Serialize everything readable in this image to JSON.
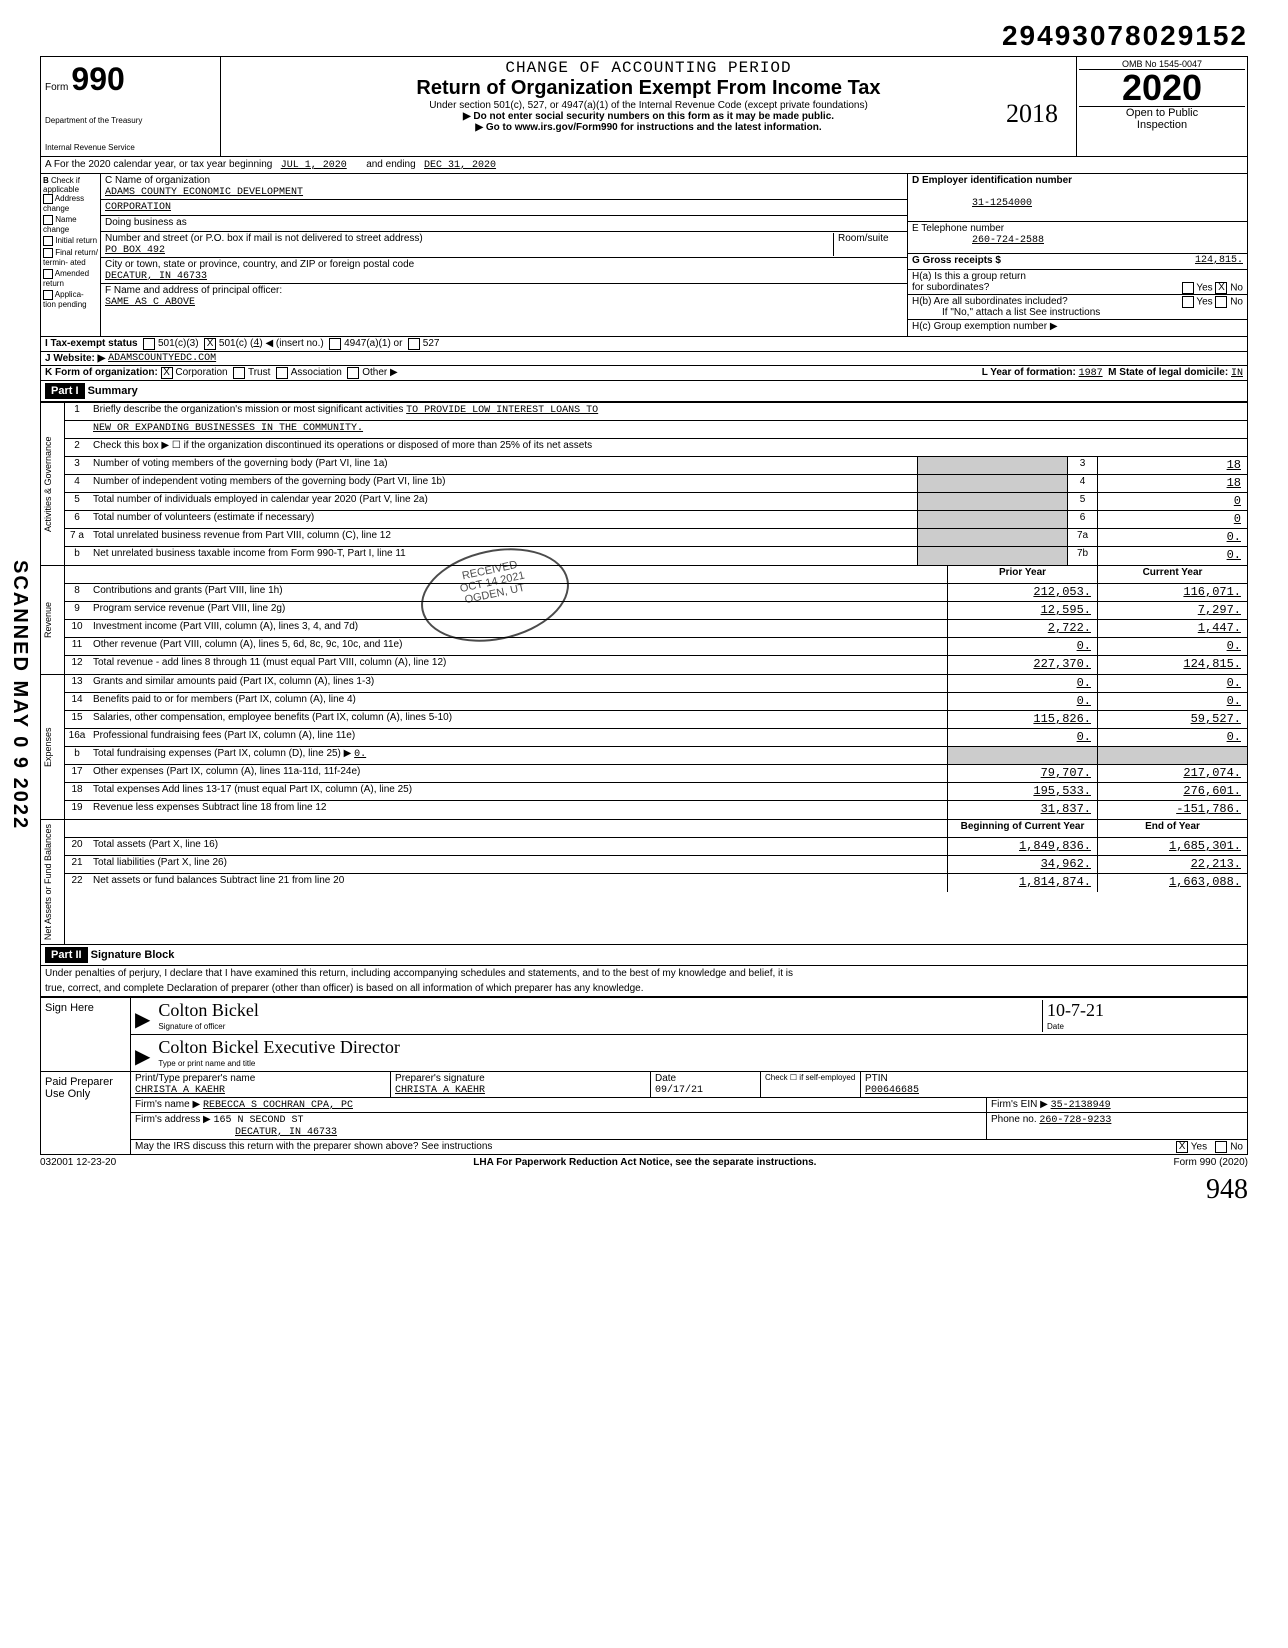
{
  "dln": "29493078029152",
  "header": {
    "form_label": "Form",
    "form_number": "990",
    "dept1": "Department of the Treasury",
    "dept2": "Internal Revenue Service",
    "accounting": "CHANGE OF ACCOUNTING PERIOD",
    "title": "Return of Organization Exempt From Income Tax",
    "subtitle": "Under section 501(c), 527, or 4947(a)(1) of the Internal Revenue Code (except private foundations)",
    "warn": "▶ Do not enter social security numbers on this form as it may be made public.",
    "goto": "▶ Go to www.irs.gov/Form990 for instructions and the latest information.",
    "omb": "OMB No  1545-0047",
    "year": "2020",
    "open1": "Open to Public",
    "open2": "Inspection",
    "stamp": "2018"
  },
  "row_a": {
    "prefix": "A  For the 2020 calendar year, or tax year beginning",
    "begin": "JUL  1,  2020",
    "mid": "and ending",
    "end": "DEC  31,  2020"
  },
  "col_b": {
    "title": "B",
    "sub": "Check if applicable",
    "items": [
      "Address change",
      "Name change",
      "Initial return",
      "Final return/ termin- ated",
      "Amended return",
      "Applica- tion pending"
    ]
  },
  "col_c": {
    "c_label": "C Name of organization",
    "name1": "ADAMS COUNTY ECONOMIC DEVELOPMENT",
    "name2": "CORPORATION",
    "dba_label": "Doing business as",
    "addr_label": "Number and street (or P.O. box if mail is not delivered to street address)",
    "room_label": "Room/suite",
    "addr": "PO BOX 492",
    "city_label": "City or town, state or province, country, and ZIP or foreign postal code",
    "city": "DECATUR, IN   46733",
    "f_label": "F Name and address of principal officer:",
    "f_val": "SAME AS C ABOVE"
  },
  "col_d": {
    "d_label": "D  Employer identification number",
    "ein": "31-1254000",
    "e_label": "E  Telephone number",
    "phone": "260-724-2588",
    "g_label": "G  Gross receipts $",
    "g_val": "124,815.",
    "h_a": "H(a) Is this a group return",
    "h_a2": "       for subordinates?",
    "h_b": "H(b) Are all subordinates included?",
    "h_note": "If \"No,\" attach a list  See instructions",
    "h_c": "H(c) Group exemption number ▶",
    "yes": "Yes",
    "no": "No",
    "x": "X"
  },
  "row_i": {
    "label": "I   Tax-exempt status",
    "opts": [
      "501(c)(3)",
      "501(c) (",
      "4",
      ") ◀  (insert no.)",
      "4947(a)(1) or",
      "527"
    ],
    "x": "X"
  },
  "row_j": {
    "label": "J  Website: ▶",
    "val": "ADAMSCOUNTYEDC.COM"
  },
  "row_k": {
    "label": "K  Form of organization:",
    "corp": "Corporation",
    "trust": "Trust",
    "assoc": "Association",
    "other": "Other ▶",
    "l_label": "L Year of formation:",
    "l_val": "1987",
    "m_label": "M State of legal domicile:",
    "m_val": "IN",
    "x": "X"
  },
  "part1": {
    "hdr": "Part I",
    "title": "Summary",
    "sections": [
      {
        "side": "Activities & Governance",
        "rows": [
          {
            "n": "1",
            "d": "Briefly describe the organization's mission or most significant activities  ",
            "val_inline": "TO PROVIDE LOW INTEREST LOANS TO",
            "type": "text"
          },
          {
            "n": "",
            "d": "",
            "val_inline": "NEW OR EXPANDING BUSINESSES IN THE COMMUNITY.",
            "type": "text"
          },
          {
            "n": "2",
            "d": "Check this box ▶ ☐ if the organization discontinued its operations or disposed of more than 25% of its net assets",
            "type": "blank"
          },
          {
            "n": "3",
            "d": "Number of voting members of the governing body (Part VI, line 1a)",
            "box": "3",
            "v2": "18",
            "type": "single"
          },
          {
            "n": "4",
            "d": "Number of independent voting members of the governing body (Part VI, line 1b)",
            "box": "4",
            "v2": "18",
            "type": "single"
          },
          {
            "n": "5",
            "d": "Total number of individuals employed in calendar year 2020 (Part V, line 2a)",
            "box": "5",
            "v2": "0",
            "type": "single"
          },
          {
            "n": "6",
            "d": "Total number of volunteers (estimate if necessary)",
            "box": "6",
            "v2": "0",
            "type": "single"
          },
          {
            "n": "7 a",
            "d": "Total unrelated business revenue from Part VIII, column (C), line 12",
            "box": "7a",
            "v2": "0.",
            "type": "single"
          },
          {
            "n": "b",
            "d": "Net unrelated business taxable income from Form 990-T, Part I, line 11",
            "box": "7b",
            "v2": "0.",
            "type": "single"
          }
        ]
      },
      {
        "side": "Revenue",
        "header": {
          "c1": "Prior Year",
          "c2": "Current Year"
        },
        "rows": [
          {
            "n": "8",
            "d": "Contributions and grants (Part VIII, line 1h)",
            "v1": "212,053.",
            "v2": "116,071."
          },
          {
            "n": "9",
            "d": "Program service revenue (Part VIII, line 2g)",
            "v1": "12,595.",
            "v2": "7,297."
          },
          {
            "n": "10",
            "d": "Investment income (Part VIII, column (A), lines 3, 4, and 7d)",
            "v1": "2,722.",
            "v2": "1,447."
          },
          {
            "n": "11",
            "d": "Other revenue (Part VIII, column (A), lines 5, 6d, 8c, 9c, 10c, and 11e)",
            "v1": "0.",
            "v2": "0."
          },
          {
            "n": "12",
            "d": "Total revenue - add lines 8 through 11 (must equal Part VIII, column (A), line 12)",
            "v1": "227,370.",
            "v2": "124,815."
          }
        ]
      },
      {
        "side": "Expenses",
        "rows": [
          {
            "n": "13",
            "d": "Grants and similar amounts paid (Part IX, column (A), lines 1-3)",
            "v1": "0.",
            "v2": "0."
          },
          {
            "n": "14",
            "d": "Benefits paid to or for members (Part IX, column (A), line 4)",
            "v1": "0.",
            "v2": "0."
          },
          {
            "n": "15",
            "d": "Salaries, other compensation, employee benefits (Part IX, column (A), lines 5-10)",
            "v1": "115,826.",
            "v2": "59,527."
          },
          {
            "n": "16a",
            "d": "Professional fundraising fees (Part IX, column (A), line 11e)",
            "v1": "0.",
            "v2": "0."
          },
          {
            "n": "b",
            "d": "Total fundraising expenses (Part IX, column (D), line 25)    ▶",
            "inline": "0.",
            "type": "inline"
          },
          {
            "n": "17",
            "d": "Other expenses (Part IX, column (A), lines 11a-11d, 11f-24e)",
            "v1": "79,707.",
            "v2": "217,074."
          },
          {
            "n": "18",
            "d": "Total expenses  Add lines 13-17 (must equal Part IX, column (A), line 25)",
            "v1": "195,533.",
            "v2": "276,601."
          },
          {
            "n": "19",
            "d": "Revenue less expenses  Subtract line 18 from line 12",
            "v1": "31,837.",
            "v2": "-151,786."
          }
        ]
      },
      {
        "side": "Net Assets or Fund Balances",
        "header": {
          "c1": "Beginning of Current Year",
          "c2": "End of Year"
        },
        "rows": [
          {
            "n": "20",
            "d": "Total assets (Part X, line 16)",
            "v1": "1,849,836.",
            "v2": "1,685,301."
          },
          {
            "n": "21",
            "d": "Total liabilities (Part X, line 26)",
            "v1": "34,962.",
            "v2": "22,213."
          },
          {
            "n": "22",
            "d": "Net assets or fund balances  Subtract line 21 from line 20",
            "v1": "1,814,874.",
            "v2": "1,663,088."
          }
        ]
      }
    ]
  },
  "part2": {
    "hdr": "Part II",
    "title": "Signature Block",
    "decl1": "Under penalties of perjury, I declare that I have examined this return, including accompanying schedules and statements, and to the best of my knowledge and belief, it is",
    "decl2": "true, correct, and complete  Declaration of preparer (other than officer) is based on all information of which preparer has any knowledge."
  },
  "sign": {
    "here": "Sign Here",
    "arrow": "▶",
    "sig_label": "Signature of officer",
    "date_label": "Date",
    "sig_val": "Colton Bickel",
    "date_val": "10-7-21",
    "name_label": "Type or print name and title",
    "name_val": "Colton Bickel        Executive Director"
  },
  "preparer": {
    "label": "Paid Preparer Use Only",
    "h1": "Print/Type preparer's name",
    "h2": "Preparer's signature",
    "h3": "Date",
    "h4": "Check ☐ if self-employed",
    "h5": "PTIN",
    "name": "CHRISTA A KAEHR",
    "sig": "CHRISTA A KAEHR",
    "date": "09/17/21",
    "ptin": "P00646685",
    "firm_label": "Firm's name    ▶",
    "firm": "REBECCA S COCHRAN CPA, PC",
    "ein_label": "Firm's EIN ▶",
    "ein": "35-2138949",
    "addr_label": "Firm's address ▶",
    "addr1": "165 N SECOND ST",
    "addr2": "DECATUR, IN 46733",
    "phone_label": "Phone no.",
    "phone": "260-728-9233",
    "irs_q": "May the IRS discuss this return with the preparer shown above? See instructions",
    "yes": "Yes",
    "no": "No",
    "x": "X"
  },
  "footer": {
    "code": "032001  12-23-20",
    "lha": "LHA   For Paperwork Reduction Act Notice, see the separate instructions.",
    "form": "Form 990 (2020)"
  },
  "scanned": "SCANNED  MAY 0 9 2022",
  "handwrite": "948",
  "stamp_text": {
    "l1": "RECEIVED",
    "l2": "OCT 14 2021",
    "l3": "OGDEN, UT"
  }
}
